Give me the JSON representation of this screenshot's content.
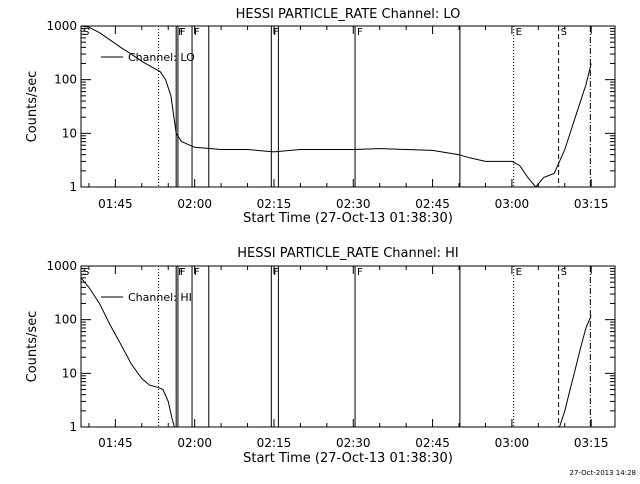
{
  "footer_timestamp": "27-Oct-2013 14:28",
  "chart_data": [
    {
      "type": "line",
      "title": "HESSI PARTICLE_RATE Channel: LO",
      "xlabel": "Start Time (27-Oct-13 01:38:30)",
      "ylabel": "Counts/sec",
      "y_scale": "log",
      "ylim": [
        1,
        1000
      ],
      "xlim_minutes_after_0138_30": [
        0,
        101
      ],
      "x_ticks": [
        "01:45",
        "02:00",
        "02:15",
        "02:30",
        "02:45",
        "03:00",
        "03:15"
      ],
      "y_ticks": [
        "1",
        "10",
        "100",
        "1000"
      ],
      "legend": {
        "label": "Channel: LO",
        "position": "top-left"
      },
      "event_markers": [
        {
          "label": "S",
          "time": "01:38:30",
          "style": "dotted"
        },
        {
          "label": "",
          "time": "01:53:10",
          "style": "dotted"
        },
        {
          "label": "F",
          "time": "01:56:30",
          "style": "solid"
        },
        {
          "label": "F",
          "time": "01:56:50",
          "style": "solid"
        },
        {
          "label": "F",
          "time": "01:59:30",
          "style": "solid"
        },
        {
          "label": "",
          "time": "02:02:40",
          "style": "solid"
        },
        {
          "label": "F",
          "time": "02:14:30",
          "style": "solid"
        },
        {
          "label": "",
          "time": "02:15:50",
          "style": "solid"
        },
        {
          "label": "F",
          "time": "02:30:20",
          "style": "solid"
        },
        {
          "label": "",
          "time": "02:50:10",
          "style": "solid"
        },
        {
          "label": "E",
          "time": "03:00:20",
          "style": "dotted"
        },
        {
          "label": "S",
          "time": "03:08:50",
          "style": "dashed"
        },
        {
          "label": "",
          "time": "03:14:50",
          "style": "dashdot"
        }
      ],
      "series": [
        {
          "name": "Channel: LO",
          "x": [
            "01:38:30",
            "01:40:00",
            "01:42:00",
            "01:44:00",
            "01:46:00",
            "01:48:00",
            "01:50:00",
            "01:52:00",
            "01:53:30",
            "01:54:30",
            "01:55:30",
            "01:56:30",
            "01:57:30",
            "02:00:00",
            "02:05:00",
            "02:10:00",
            "02:15:00",
            "02:20:00",
            "02:25:00",
            "02:30:00",
            "02:35:00",
            "02:40:00",
            "02:45:00",
            "02:50:00",
            "02:52:00",
            "02:55:00",
            "03:00:00",
            "03:01:30",
            "03:03:00",
            "03:04:30",
            "03:06:00",
            "03:08:00",
            "03:10:00",
            "03:12:00",
            "03:14:00",
            "03:15:00"
          ],
          "y": [
            1000,
            950,
            750,
            550,
            400,
            300,
            220,
            170,
            140,
            100,
            50,
            10,
            7,
            5.5,
            5,
            5,
            4.5,
            5,
            5,
            5,
            5.2,
            5,
            4.8,
            4,
            3.5,
            3,
            3,
            2.5,
            1.5,
            1,
            1.5,
            1.8,
            5,
            20,
            80,
            200
          ]
        }
      ]
    },
    {
      "type": "line",
      "title": "HESSI PARTICLE_RATE Channel: HI",
      "xlabel": "Start Time (27-Oct-13 01:38:30)",
      "ylabel": "Counts/sec",
      "y_scale": "log",
      "ylim": [
        1,
        1000
      ],
      "x_ticks": [
        "01:45",
        "02:00",
        "02:15",
        "02:30",
        "02:45",
        "03:00",
        "03:15"
      ],
      "y_ticks": [
        "1",
        "10",
        "100",
        "1000"
      ],
      "legend": {
        "label": "Channel: HI",
        "position": "top-left"
      },
      "event_markers": [
        {
          "label": "S",
          "time": "01:38:30",
          "style": "dotted"
        },
        {
          "label": "",
          "time": "01:53:10",
          "style": "dotted"
        },
        {
          "label": "F",
          "time": "01:56:30",
          "style": "solid"
        },
        {
          "label": "F",
          "time": "01:56:50",
          "style": "solid"
        },
        {
          "label": "F",
          "time": "01:59:30",
          "style": "solid"
        },
        {
          "label": "",
          "time": "02:02:40",
          "style": "solid"
        },
        {
          "label": "F",
          "time": "02:14:30",
          "style": "solid"
        },
        {
          "label": "",
          "time": "02:15:50",
          "style": "solid"
        },
        {
          "label": "F",
          "time": "02:30:20",
          "style": "solid"
        },
        {
          "label": "",
          "time": "02:50:10",
          "style": "solid"
        },
        {
          "label": "E",
          "time": "03:00:20",
          "style": "dotted"
        },
        {
          "label": "S",
          "time": "03:08:50",
          "style": "dashed"
        },
        {
          "label": "",
          "time": "03:14:50",
          "style": "dashdot"
        }
      ],
      "series": [
        {
          "name": "Channel: HI",
          "x": [
            "01:38:30",
            "01:40:00",
            "01:42:00",
            "01:44:00",
            "01:46:00",
            "01:48:00",
            "01:50:00",
            "01:51:30",
            "01:53:00",
            "01:54:00",
            "01:55:00",
            "01:55:40",
            "01:56:10",
            "03:09:00",
            "03:10:00",
            "03:11:00",
            "03:12:00",
            "03:13:00",
            "03:14:00",
            "03:15:00"
          ],
          "y": [
            600,
            400,
            200,
            80,
            35,
            15,
            8,
            6,
            5.5,
            5,
            3,
            1.5,
            1,
            1,
            2,
            5,
            12,
            30,
            70,
            120
          ]
        }
      ]
    }
  ]
}
